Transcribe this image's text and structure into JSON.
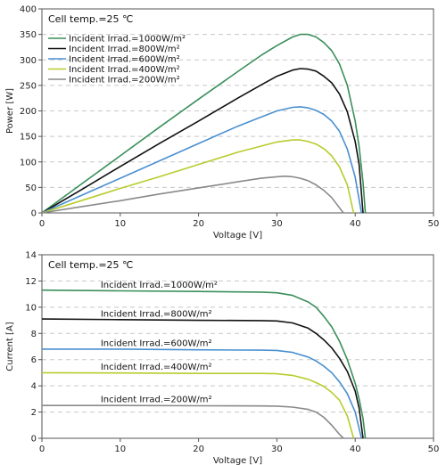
{
  "chart_data": [
    {
      "type": "line",
      "condition": "Cell temp.=25 ℃",
      "xlabel": "Voltage [V]",
      "ylabel": "Power [W]",
      "xlim": [
        0,
        50
      ],
      "ylim": [
        0,
        400
      ],
      "xticks": [
        "0",
        "10",
        "20",
        "30",
        "40",
        "50"
      ],
      "yticks": [
        "0",
        "50",
        "100",
        "150",
        "200",
        "250",
        "300",
        "350",
        "400"
      ],
      "grid": "horizontal dashed",
      "legend_position": "top-left",
      "series": [
        {
          "name": "Incident Irrad.=1000W/m²",
          "color": "#3a8f5a",
          "x": [
            0,
            5,
            10,
            15,
            20,
            25,
            28,
            30,
            32,
            33,
            34,
            35,
            36,
            37,
            38,
            39,
            40,
            40.5,
            41,
            41.3
          ],
          "y": [
            0,
            56,
            112,
            168,
            223,
            277,
            309,
            328,
            345,
            350,
            350,
            345,
            334,
            318,
            292,
            250,
            180,
            130,
            60,
            0
          ]
        },
        {
          "name": "Incident Irrad.=800W/m²",
          "color": "#111111",
          "x": [
            0,
            5,
            10,
            15,
            20,
            25,
            28,
            30,
            32,
            33,
            34,
            35,
            36,
            37,
            38,
            39,
            40,
            40.5,
            41
          ],
          "y": [
            0,
            45,
            91,
            136,
            180,
            225,
            251,
            268,
            280,
            283,
            282,
            278,
            268,
            255,
            233,
            198,
            140,
            95,
            0
          ]
        },
        {
          "name": "Incident Irrad.=600W/m²",
          "color": "#4a90d0",
          "x": [
            0,
            5,
            10,
            15,
            20,
            25,
            28,
            30,
            32,
            33,
            34,
            35,
            36,
            37,
            38,
            39,
            40,
            40.8
          ],
          "y": [
            0,
            34,
            68,
            102,
            136,
            170,
            188,
            200,
            207,
            208,
            206,
            201,
            193,
            180,
            160,
            125,
            70,
            0
          ]
        },
        {
          "name": "Incident Irrad.=400W/m²",
          "color": "#b8cc2c",
          "x": [
            0,
            5,
            10,
            15,
            20,
            25,
            28,
            30,
            32,
            33,
            34,
            35,
            36,
            37,
            38,
            39,
            39.8
          ],
          "y": [
            0,
            24,
            48,
            71,
            95,
            119,
            131,
            139,
            143,
            143,
            140,
            135,
            126,
            112,
            90,
            55,
            0
          ]
        },
        {
          "name": "Incident Irrad.=200W/m²",
          "color": "#8a8a8a",
          "x": [
            0,
            5,
            10,
            15,
            20,
            25,
            28,
            30,
            31,
            32,
            33,
            34,
            35,
            36,
            37,
            38,
            38.5
          ],
          "y": [
            0,
            12,
            24,
            37,
            49,
            61,
            68,
            71,
            72,
            71,
            68,
            63,
            55,
            44,
            30,
            10,
            0
          ]
        }
      ]
    },
    {
      "type": "line",
      "condition": "Cell temp.=25 ℃",
      "xlabel": "Voltage [V]",
      "ylabel": "Current [A]",
      "xlim": [
        0,
        50
      ],
      "ylim": [
        0,
        14
      ],
      "xticks": [
        "0",
        "10",
        "20",
        "30",
        "40",
        "50"
      ],
      "yticks": [
        "0",
        "2",
        "4",
        "6",
        "8",
        "10",
        "12",
        "14"
      ],
      "grid": "horizontal dashed",
      "series": [
        {
          "name": "Incident Irrad.=1000W/m²",
          "color": "#3a8f5a",
          "x": [
            0,
            10,
            20,
            28,
            30,
            32,
            34,
            35,
            36,
            37,
            38,
            39,
            40,
            40.5,
            41,
            41.3
          ],
          "y": [
            11.3,
            11.25,
            11.2,
            11.15,
            11.1,
            10.9,
            10.4,
            10.0,
            9.3,
            8.5,
            7.4,
            6.0,
            4.2,
            3.0,
            1.5,
            0
          ]
        },
        {
          "name": "Incident Irrad.=800W/m²",
          "color": "#111111",
          "x": [
            0,
            10,
            20,
            28,
            30,
            32,
            34,
            35,
            36,
            37,
            38,
            39,
            40,
            40.5,
            41
          ],
          "y": [
            9.1,
            9.05,
            9.0,
            8.98,
            8.95,
            8.8,
            8.4,
            8.0,
            7.5,
            6.9,
            6.1,
            5.1,
            3.6,
            2.3,
            0
          ]
        },
        {
          "name": "Incident Irrad.=600W/m²",
          "color": "#4a90d0",
          "x": [
            0,
            10,
            20,
            28,
            30,
            32,
            34,
            35,
            36,
            37,
            38,
            39,
            40,
            40.8
          ],
          "y": [
            6.8,
            6.8,
            6.75,
            6.72,
            6.7,
            6.55,
            6.2,
            5.9,
            5.5,
            5.0,
            4.3,
            3.4,
            2.0,
            0
          ]
        },
        {
          "name": "Incident Irrad.=400W/m²",
          "color": "#b8cc2c",
          "x": [
            0,
            10,
            20,
            28,
            30,
            32,
            34,
            35,
            36,
            37,
            38,
            39,
            39.8
          ],
          "y": [
            5.0,
            4.98,
            4.95,
            4.95,
            4.92,
            4.8,
            4.5,
            4.25,
            3.95,
            3.5,
            2.9,
            1.7,
            0
          ]
        },
        {
          "name": "Incident Irrad.=200W/m²",
          "color": "#8a8a8a",
          "x": [
            0,
            10,
            20,
            28,
            30,
            32,
            34,
            35,
            36,
            37,
            38,
            38.5
          ],
          "y": [
            2.5,
            2.5,
            2.48,
            2.47,
            2.45,
            2.38,
            2.2,
            2.0,
            1.6,
            1.0,
            0.3,
            0
          ]
        }
      ]
    }
  ]
}
